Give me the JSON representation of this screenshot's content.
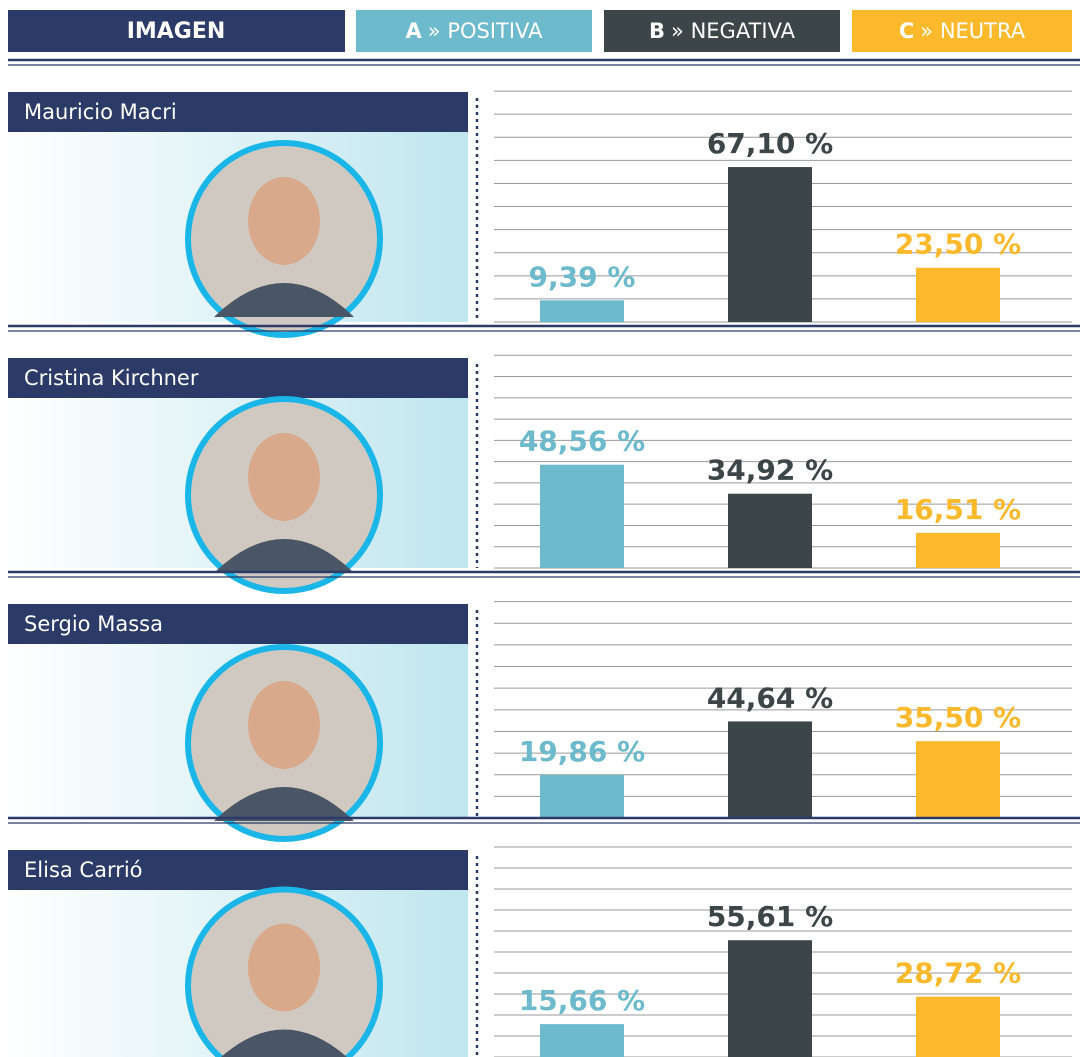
{
  "header": {
    "title": "IMAGEN",
    "legend": [
      {
        "key": "A",
        "label": "» POSITIVA",
        "color": "#6cbacb"
      },
      {
        "key": "B",
        "label": "» NEGATIVA",
        "color": "#3c4548"
      },
      {
        "key": "C",
        "label": "» NEUTRA",
        "color": "#fbb92b"
      }
    ]
  },
  "chart_data": [
    {
      "type": "bar",
      "title": "Mauricio Macri",
      "values": [
        9.39,
        67.1,
        23.5
      ],
      "value_labels": [
        "9,39 %",
        "67,10 %",
        "23,50 %"
      ],
      "ylim": [
        0,
        110
      ],
      "yticks": [
        0,
        10,
        20,
        30,
        40,
        50,
        60,
        70,
        80,
        90,
        100
      ],
      "grid": true
    },
    {
      "type": "bar",
      "title": "Cristina Kirchner",
      "values": [
        48.56,
        34.92,
        16.51
      ],
      "value_labels": [
        "48,56 %",
        "34,92 %",
        "16,51 %"
      ],
      "ylim": [
        0,
        110
      ],
      "yticks": [
        0,
        10,
        20,
        30,
        40,
        50,
        60,
        70,
        80,
        90,
        100
      ],
      "grid": true
    },
    {
      "type": "bar",
      "title": "Sergio Massa",
      "values": [
        19.86,
        44.64,
        35.5
      ],
      "value_labels": [
        "19,86 %",
        "44,64 %",
        "35,50 %"
      ],
      "ylim": [
        0,
        110
      ],
      "yticks": [
        0,
        10,
        20,
        30,
        40,
        50,
        60,
        70,
        80,
        90,
        100
      ],
      "grid": true
    },
    {
      "type": "bar",
      "title": "Elisa Carrió",
      "values": [
        15.66,
        55.61,
        28.72
      ],
      "value_labels": [
        "15,66 %",
        "55,61 %",
        "28,72 %"
      ],
      "ylim": [
        0,
        110
      ],
      "yticks": [
        0,
        10,
        20,
        30,
        40,
        50,
        60,
        70,
        80,
        90,
        100
      ],
      "grid": true
    }
  ]
}
